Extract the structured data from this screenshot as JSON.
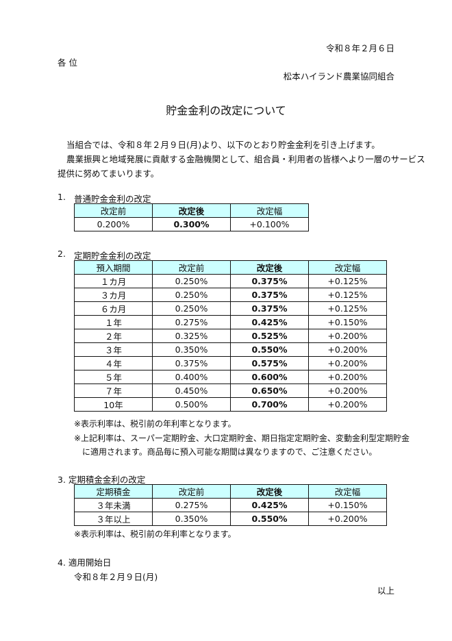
{
  "date": "令和８年２月６日",
  "addressee": "各 位",
  "sender": "松本ハイランド農業協同組合",
  "title": "貯金金利の改定について",
  "intro": [
    "当組合では、令和８年２月９日(月)より、以下のとおり貯金金利を引き上げます。",
    "農業振興と地域発展に貢献する金融機関として、組合員・利用者の皆様へより一層のサービス",
    "提供に努めてまいります。"
  ],
  "section1": {
    "heading_num": "1.",
    "heading": "普通貯金金利の改定",
    "headers": [
      "改定前",
      "改定後",
      "改定幅"
    ],
    "row": [
      "0.200%",
      "0.300%",
      "+0.100%"
    ]
  },
  "section2": {
    "heading_num": "2.",
    "heading": "定期貯金金利の改定",
    "headers": [
      "預入期間",
      "改定前",
      "改定後",
      "改定幅"
    ],
    "rows": [
      [
        "１カ月",
        "0.250%",
        "0.375%",
        "+0.125%"
      ],
      [
        "３カ月",
        "0.250%",
        "0.375%",
        "+0.125%"
      ],
      [
        "６カ月",
        "0.250%",
        "0.375%",
        "+0.125%"
      ],
      [
        "１年",
        "0.275%",
        "0.425%",
        "+0.150%"
      ],
      [
        "２年",
        "0.325%",
        "0.525%",
        "+0.200%"
      ],
      [
        "３年",
        "0.350%",
        "0.550%",
        "+0.200%"
      ],
      [
        "４年",
        "0.375%",
        "0.575%",
        "+0.200%"
      ],
      [
        "５年",
        "0.400%",
        "0.600%",
        "+0.200%"
      ],
      [
        "７年",
        "0.450%",
        "0.650%",
        "+0.200%"
      ],
      [
        "10年",
        "0.500%",
        "0.700%",
        "+0.200%"
      ]
    ],
    "notes": [
      "※表示利率は、税引前の年利率となります。",
      "※上記利率は、スーパー定期貯金、大口定期貯金、期日指定定期貯金、変動金利型定期貯金",
      "に適用されます。商品毎に預入可能な期間は異なりますので、ご注意ください。"
    ]
  },
  "section3": {
    "heading": "3. 定期積金金利の改定",
    "headers": [
      "定期積金",
      "改定前",
      "改定後",
      "改定幅"
    ],
    "rows": [
      [
        "３年未満",
        "0.275%",
        "0.425%",
        "+0.150%"
      ],
      [
        "３年以上",
        "0.350%",
        "0.550%",
        "+0.200%"
      ]
    ],
    "note": "※表示利率は、税引前の年利率となります。"
  },
  "section4": {
    "heading": "4. 適用開始日",
    "date": "令和８年２月９日(月)"
  },
  "closing": "以上",
  "colors": {
    "header_bg": "#ccffff"
  }
}
